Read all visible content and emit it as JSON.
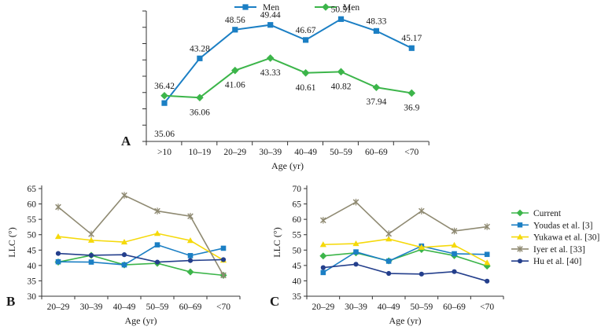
{
  "colors": {
    "blue": "#1b7fc4",
    "green": "#3cb54a",
    "yellow": "#f5d90a",
    "gray": "#8f8a72",
    "navy": "#243f8c",
    "axis": "#333333"
  },
  "chart_data": [
    {
      "panel": "A",
      "type": "line",
      "categories": [
        ">10",
        "10–19",
        "20–29",
        "30–39",
        "40–49",
        "50–59",
        "60–69",
        "<70"
      ],
      "xlabel": "Age (yr)",
      "ylabel": "",
      "ylim": [
        28,
        52
      ],
      "y_tick_count": 9,
      "legend_position": "top",
      "series": [
        {
          "name": "Men",
          "color": "blue",
          "marker": "square",
          "label_pos": "above",
          "values": [
            35.06,
            43.28,
            48.56,
            49.44,
            46.67,
            50.51,
            48.33,
            45.17
          ],
          "labels": [
            "35.06",
            "43.28",
            "48.56",
            "49.44",
            "46.67",
            "50.51",
            "48.33",
            "45.17"
          ]
        },
        {
          "name": "Men",
          "color": "green",
          "marker": "diamond",
          "label_pos": "below",
          "values": [
            36.42,
            36.06,
            41.06,
            43.33,
            40.61,
            40.82,
            37.94,
            36.9
          ],
          "labels": [
            "36.42",
            "36.06",
            "41.06",
            "43.33",
            "40.61",
            "40.82",
            "37.94",
            "36.9"
          ]
        }
      ]
    },
    {
      "panel": "B",
      "type": "line",
      "categories": [
        "20–29",
        "30–39",
        "40–49",
        "50–59",
        "60–69",
        "<70"
      ],
      "xlabel": "Age (yr)",
      "ylabel": "LLC (°)",
      "ylim": [
        30,
        65
      ],
      "yticks": [
        30,
        35,
        40,
        45,
        50,
        55,
        60,
        65
      ],
      "series": [
        {
          "name": "Current",
          "color": "green",
          "marker": "diamond",
          "values": [
            41.1,
            43.3,
            40.2,
            40.7,
            37.9,
            36.8
          ]
        },
        {
          "name": "Youdas et al. [3]",
          "color": "blue",
          "marker": "square",
          "values": [
            41.2,
            41.1,
            40.2,
            46.7,
            43.2,
            45.6
          ]
        },
        {
          "name": "Yukawa et al. [30]",
          "color": "yellow",
          "marker": "triangle",
          "values": [
            49.4,
            48.2,
            47.6,
            50.4,
            48.1,
            41.7
          ]
        },
        {
          "name": "Iyer et al. [33]",
          "color": "gray",
          "marker": "cross",
          "values": [
            59.0,
            50.2,
            62.8,
            57.7,
            56.0,
            36.8
          ]
        },
        {
          "name": "Hu et al. [40]",
          "color": "navy",
          "marker": "circle",
          "values": [
            43.9,
            43.3,
            43.5,
            41.1,
            41.6,
            41.9
          ]
        }
      ]
    },
    {
      "panel": "C",
      "type": "line",
      "categories": [
        "20–29",
        "30–39",
        "40–49",
        "50–59",
        "60–69",
        "<70"
      ],
      "xlabel": "Age (yr)",
      "ylabel": "LLC (°)",
      "ylim": [
        35,
        70
      ],
      "yticks": [
        35,
        40,
        45,
        50,
        55,
        60,
        65,
        70
      ],
      "series": [
        {
          "name": "Current",
          "color": "green",
          "marker": "diamond",
          "values": [
            48.1,
            49.1,
            46.5,
            50.2,
            48.2,
            44.8
          ]
        },
        {
          "name": "Youdas et al. [3]",
          "color": "blue",
          "marker": "square",
          "values": [
            42.7,
            49.4,
            46.4,
            51.3,
            48.8,
            48.6
          ]
        },
        {
          "name": "Yukawa et al. [30]",
          "color": "yellow",
          "marker": "triangle",
          "values": [
            51.8,
            52.1,
            53.6,
            50.9,
            51.6,
            45.9
          ]
        },
        {
          "name": "Iyer et al. [33]",
          "color": "gray",
          "marker": "cross",
          "values": [
            59.7,
            65.6,
            55.3,
            62.7,
            56.2,
            57.6
          ]
        },
        {
          "name": "Hu et al. [40]",
          "color": "navy",
          "marker": "circle",
          "values": [
            44.3,
            45.4,
            42.4,
            42.2,
            43.0,
            39.9
          ]
        }
      ]
    }
  ],
  "legend": {
    "items": [
      "Current",
      "Youdas et al. [3]",
      "Yukawa et al. [30]",
      "Iyer et al. [33]",
      "Hu et al. [40]"
    ],
    "colors": [
      "green",
      "blue",
      "yellow",
      "gray",
      "navy"
    ],
    "markers": [
      "diamond",
      "square",
      "triangle",
      "cross",
      "circle"
    ]
  }
}
